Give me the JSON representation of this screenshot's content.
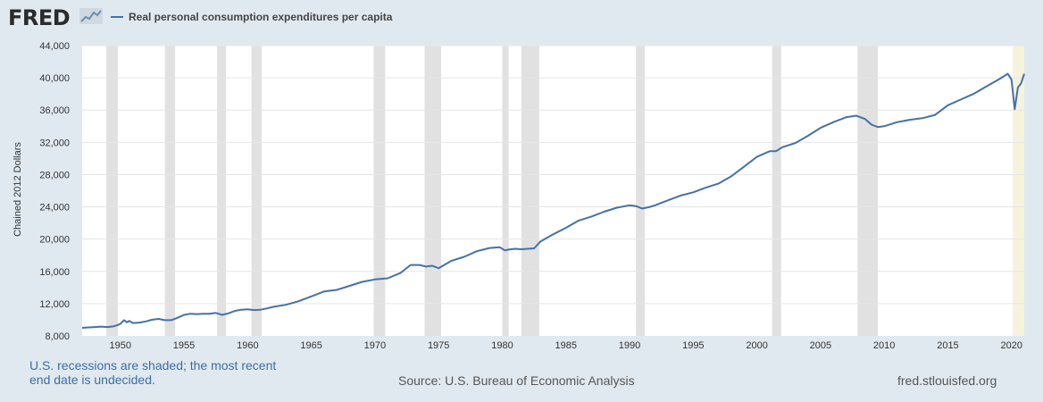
{
  "header": {
    "logo_text": "FRED",
    "legend_label": "Real personal consumption expenditures per capita",
    "series_color": "#4572a7"
  },
  "footer": {
    "note_line1": "U.S. recessions are shaded; the most recent",
    "note_line2": "end date is undecided.",
    "source": "Source: U.S. Bureau of Economic Analysis",
    "site": "fred.stlouisfed.org"
  },
  "chart_data": {
    "type": "line",
    "title": "",
    "xlabel": "",
    "ylabel": "Chained 2012 Dollars",
    "xlim": [
      1947.0,
      2021.0
    ],
    "ylim": [
      8000,
      44000
    ],
    "yticks": [
      8000,
      12000,
      16000,
      20000,
      24000,
      28000,
      32000,
      36000,
      40000,
      44000
    ],
    "ytick_labels": [
      "8,000",
      "12,000",
      "16,000",
      "20,000",
      "24,000",
      "28,000",
      "32,000",
      "36,000",
      "40,000",
      "44,000"
    ],
    "xticks": [
      1950,
      1955,
      1960,
      1965,
      1970,
      1975,
      1980,
      1985,
      1990,
      1995,
      2000,
      2005,
      2010,
      2015,
      2020
    ],
    "xtick_labels": [
      "1950",
      "1955",
      "1960",
      "1965",
      "1970",
      "1975",
      "1980",
      "1985",
      "1990",
      "1995",
      "2000",
      "2005",
      "2010",
      "2015",
      "2020"
    ],
    "grid": true,
    "legend_position": "top-left",
    "colors": {
      "line": "#4572a7",
      "recession": "#e1e1e1",
      "undecided_recession": "#f5f3dc",
      "grid": "#e6e6e6",
      "plot_bg": "#ffffff"
    },
    "recessions": [
      [
        1948.9,
        1949.8
      ],
      [
        1953.5,
        1954.3
      ],
      [
        1957.6,
        1958.3
      ],
      [
        1960.3,
        1961.1
      ],
      [
        1969.9,
        1970.8
      ],
      [
        1973.9,
        1975.2
      ],
      [
        1980.0,
        1980.5
      ],
      [
        1981.5,
        1982.9
      ],
      [
        1990.5,
        1991.2
      ],
      [
        2001.2,
        2001.9
      ],
      [
        2007.9,
        2009.5
      ]
    ],
    "recessions_undecided": [
      [
        2020.1,
        2021.0
      ]
    ],
    "series": [
      {
        "x": [
          1947.0,
          1947.5,
          1948.0,
          1948.5,
          1949.0,
          1949.5,
          1949.8,
          1950.0,
          1950.3,
          1950.5,
          1950.7,
          1951.0,
          1951.5,
          1952.0,
          1952.5,
          1953.0,
          1953.5,
          1954.0,
          1954.5,
          1955.0,
          1955.5,
          1956.0,
          1956.5,
          1957.0,
          1957.5,
          1958.0,
          1958.5,
          1959.0,
          1959.5,
          1960.0,
          1960.5,
          1961.0,
          1961.5,
          1962.0,
          1963.0,
          1964.0,
          1965.0,
          1966.0,
          1967.0,
          1968.0,
          1969.0,
          1970.0,
          1971.0,
          1972.0,
          1972.8,
          1973.5,
          1974.0,
          1974.5,
          1975.0,
          1976.0,
          1977.0,
          1978.0,
          1979.0,
          1979.8,
          1980.2,
          1980.5,
          1981.0,
          1981.5,
          1982.0,
          1982.5,
          1983.0,
          1984.0,
          1985.0,
          1986.0,
          1987.0,
          1988.0,
          1989.0,
          1990.0,
          1990.5,
          1991.0,
          1991.5,
          1992.0,
          1993.0,
          1994.0,
          1995.0,
          1996.0,
          1997.0,
          1998.0,
          1999.0,
          2000.0,
          2001.0,
          2001.5,
          2002.0,
          2003.0,
          2004.0,
          2005.0,
          2006.0,
          2007.0,
          2007.8,
          2008.5,
          2009.0,
          2009.5,
          2010.0,
          2011.0,
          2012.0,
          2013.0,
          2014.0,
          2015.0,
          2016.0,
          2017.0,
          2018.0,
          2019.0,
          2019.7,
          2020.0,
          2020.25,
          2020.5,
          2020.75,
          2021.0
        ],
        "y": [
          9000,
          9050,
          9100,
          9150,
          9100,
          9200,
          9350,
          9500,
          9950,
          9700,
          9850,
          9600,
          9650,
          9800,
          10000,
          10100,
          9950,
          9950,
          10250,
          10600,
          10750,
          10700,
          10750,
          10750,
          10850,
          10600,
          10800,
          11100,
          11250,
          11300,
          11200,
          11250,
          11400,
          11600,
          11850,
          12300,
          12900,
          13500,
          13700,
          14200,
          14700,
          15000,
          15150,
          15800,
          16800,
          16800,
          16600,
          16700,
          16400,
          17300,
          17800,
          18500,
          18900,
          19000,
          18600,
          18700,
          18800,
          18750,
          18800,
          18850,
          19700,
          20600,
          21400,
          22300,
          22800,
          23400,
          23900,
          24200,
          24100,
          23800,
          23950,
          24200,
          24800,
          25400,
          25800,
          26400,
          26900,
          27800,
          29000,
          30200,
          30900,
          30900,
          31400,
          31900,
          32800,
          33800,
          34500,
          35100,
          35300,
          34900,
          34200,
          33900,
          34000,
          34500,
          34800,
          35000,
          35400,
          36600,
          37300,
          38000,
          38900,
          39800,
          40500,
          39800,
          36100,
          38800,
          39300,
          40500
        ]
      }
    ]
  }
}
